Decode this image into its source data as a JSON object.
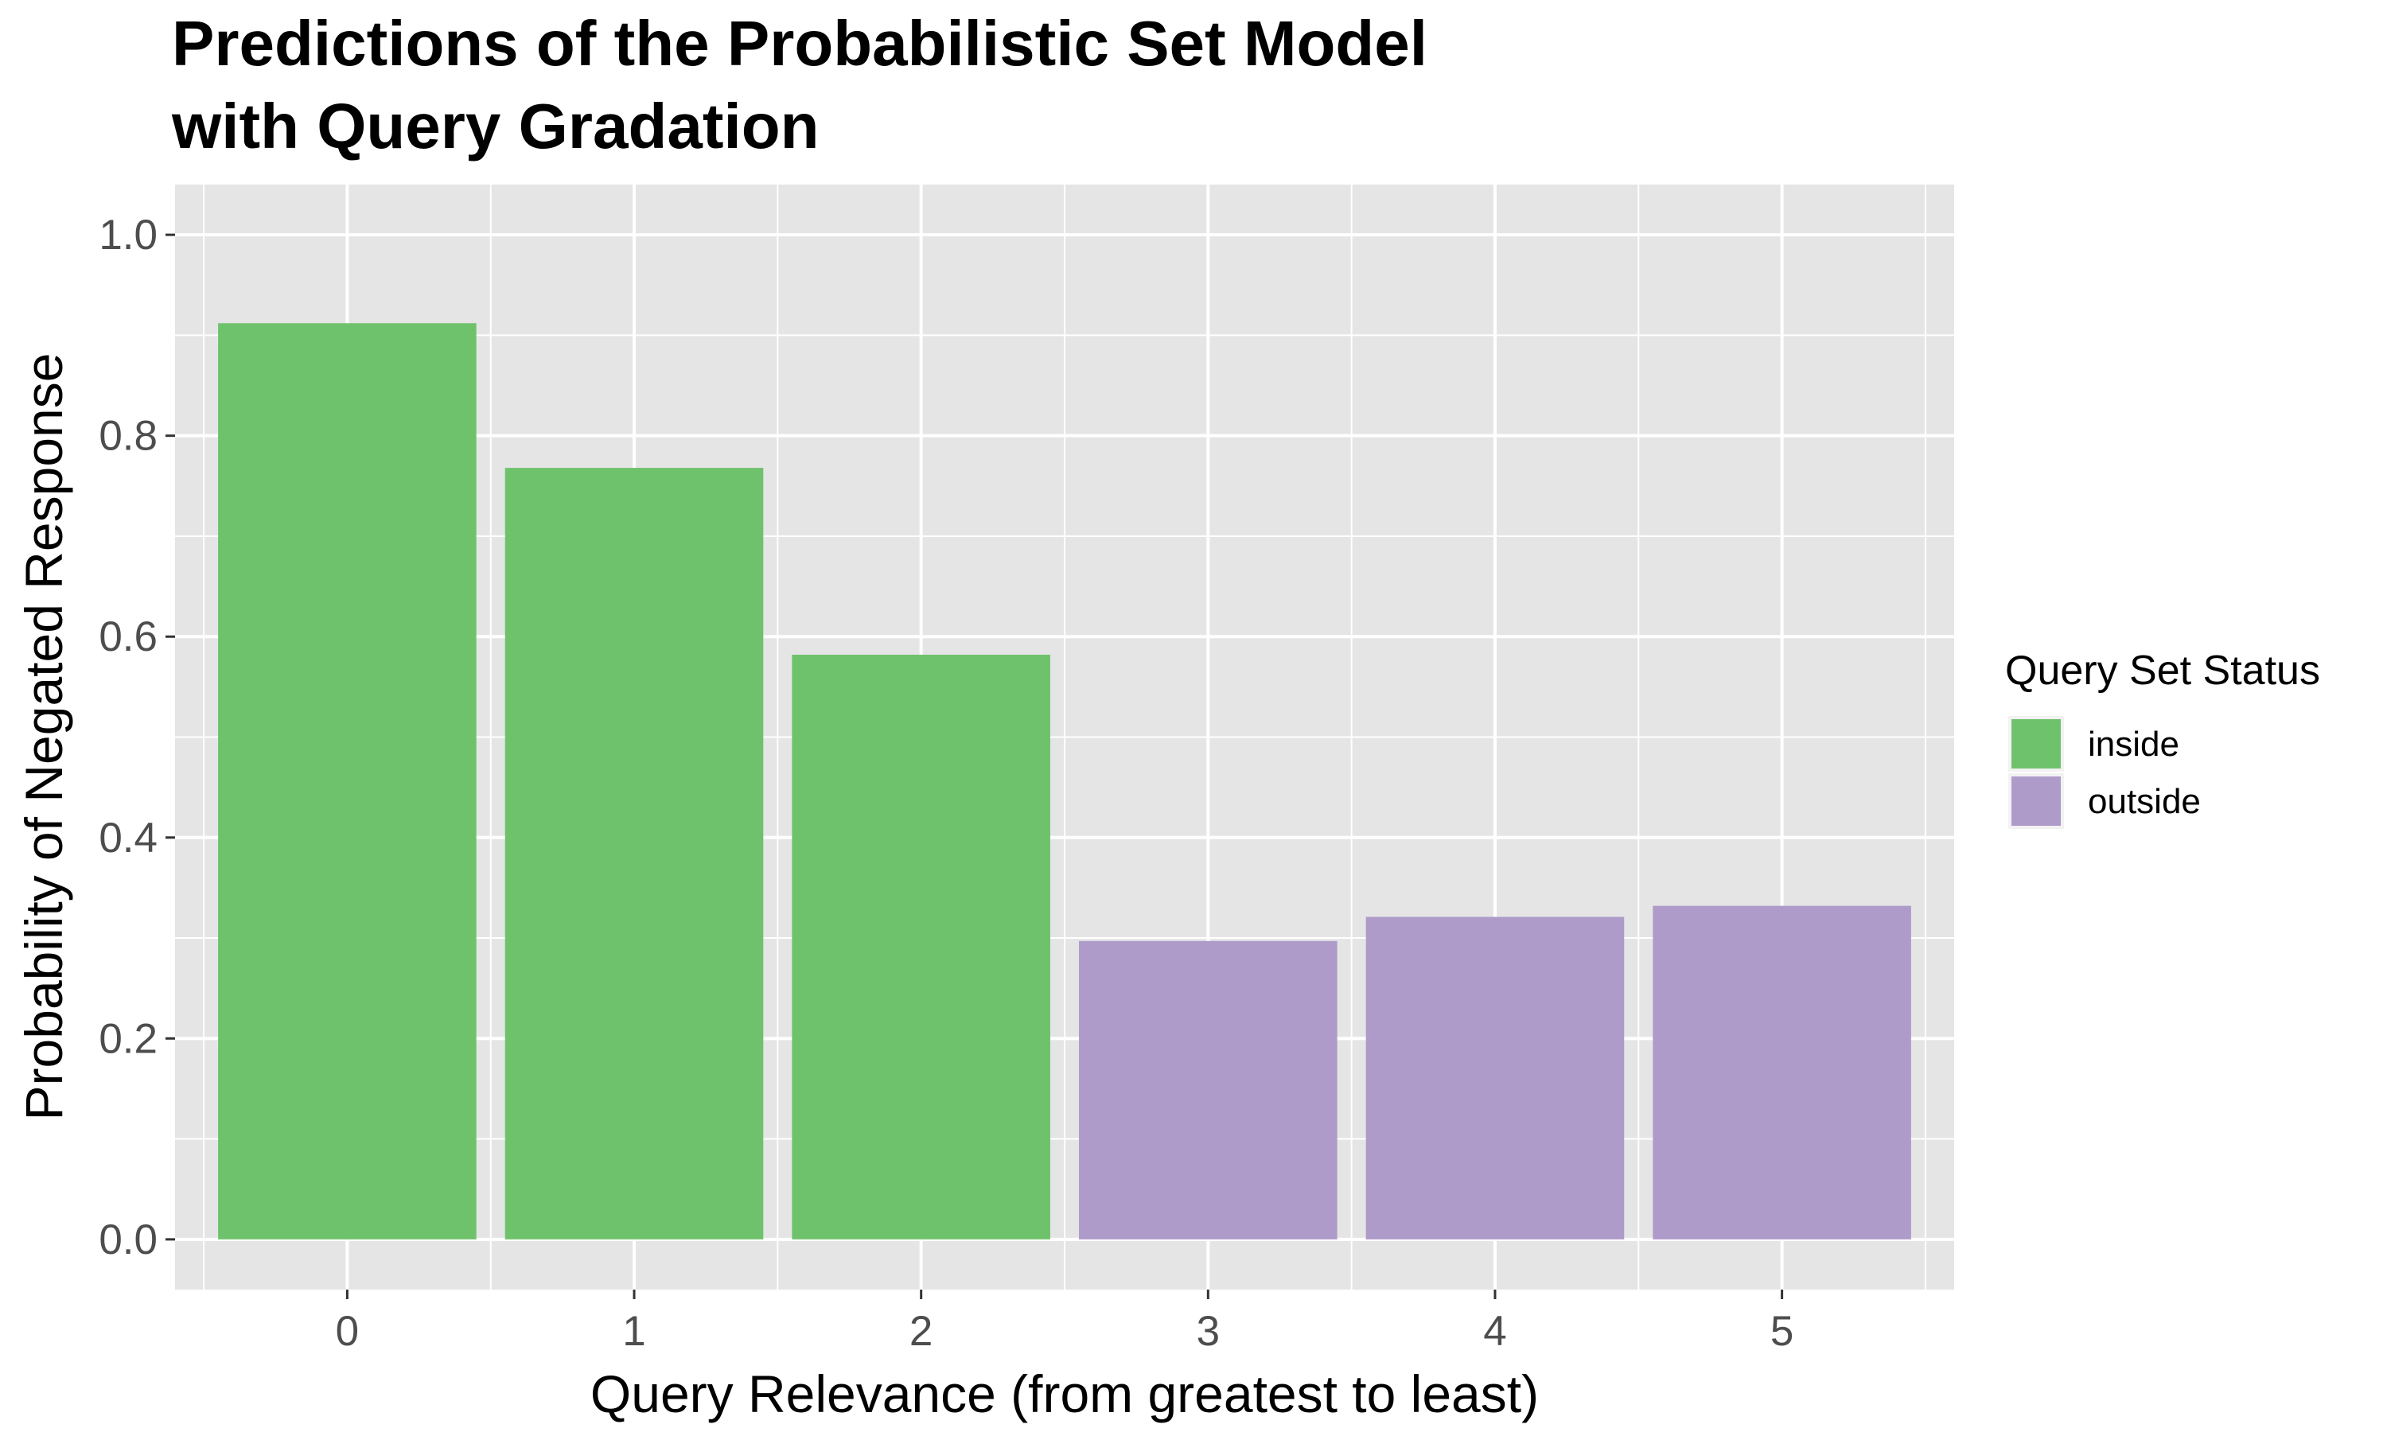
{
  "chart_data": {
    "type": "bar",
    "title_lines": [
      "Predictions of the Probabilistic Set Model",
      "with Query Gradation"
    ],
    "xlabel": "Query Relevance (from greatest to least)",
    "ylabel": "Probability of Negated Response",
    "categories": [
      "0",
      "1",
      "2",
      "3",
      "4",
      "5"
    ],
    "values": [
      0.912,
      0.768,
      0.582,
      0.297,
      0.321,
      0.332
    ],
    "groups": [
      "inside",
      "inside",
      "inside",
      "outside",
      "outside",
      "outside"
    ],
    "ylim": [
      -0.05,
      1.05
    ],
    "yticks": [
      0.0,
      0.2,
      0.4,
      0.6,
      0.8,
      1.0
    ],
    "ytick_labels": [
      "0.0",
      "0.2",
      "0.4",
      "0.6",
      "0.8",
      "1.0"
    ],
    "grid": true,
    "legend": {
      "title": "Query Set Status",
      "position": "right",
      "entries": [
        {
          "label": "inside",
          "color": "#6fc26c"
        },
        {
          "label": "outside",
          "color": "#ae9bca"
        }
      ]
    },
    "colors": {
      "panel_background": "#e5e5e5",
      "grid_line": "#ffffff",
      "inside": "#6fc26c",
      "outside": "#ae9bca"
    }
  }
}
